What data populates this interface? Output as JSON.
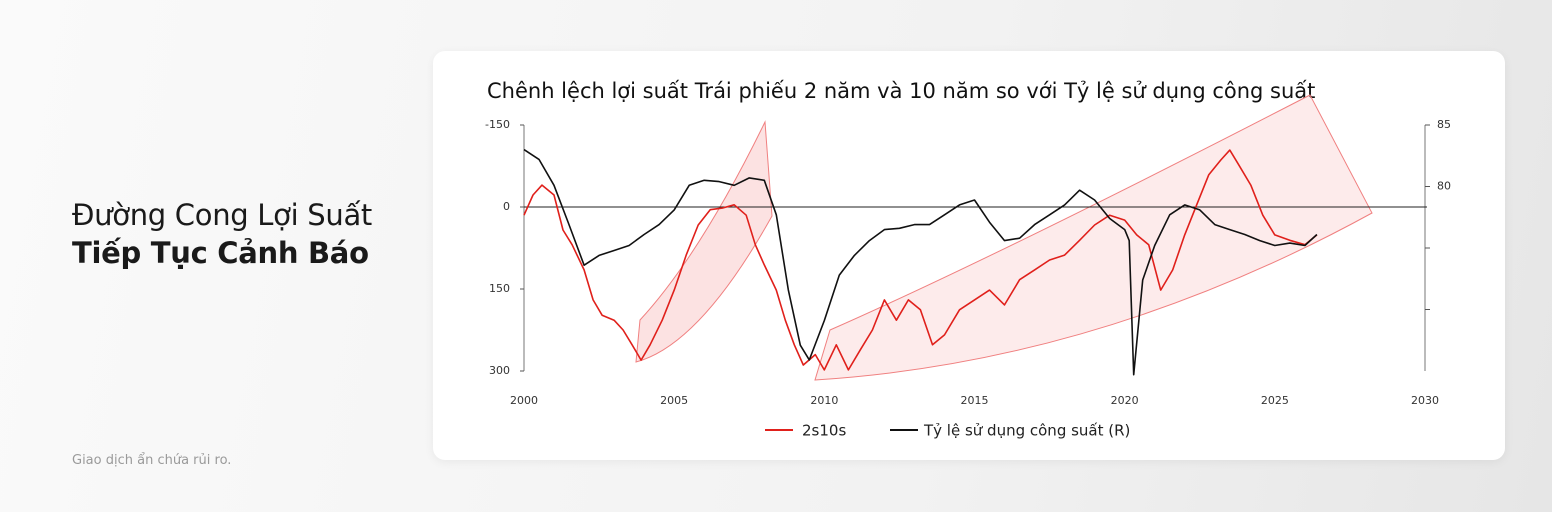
{
  "header": {
    "title_line1": "Đường Cong Lợi Suất",
    "title_line2": "Tiếp Tục Cảnh Báo"
  },
  "footer": "Giao dịch ẩn chứa rủi ro.",
  "chart_data": {
    "type": "line",
    "title": "Chênh lệch lợi suất Trái phiếu 2 năm và 10 năm so với Tỷ lệ sử dụng công suất",
    "xlim": [
      2000,
      2030
    ],
    "xticks": [
      2000,
      2005,
      2010,
      2015,
      2020,
      2025,
      2030
    ],
    "ylim": [
      -150,
      300
    ],
    "yticks": [
      -150,
      0,
      150,
      300
    ],
    "y_inverted": true,
    "zero_line": true,
    "y2lim": [
      65,
      85
    ],
    "y2ticks": [
      85,
      80,
      {
        "value": 75,
        "label": null
      },
      {
        "value": 70,
        "label": null
      }
    ],
    "series": [
      {
        "name": "2s10s",
        "color": "#e0201b",
        "x": [
          2000,
          2000.3,
          2000.6,
          2001,
          2001.3,
          2001.6,
          2002,
          2002.3,
          2002.6,
          2003,
          2003.3,
          2003.6,
          2003.9,
          2004.2,
          2004.6,
          2005,
          2005.4,
          2005.8,
          2006.2,
          2006.6,
          2007,
          2007.4,
          2007.7,
          2008,
          2008.4,
          2008.7,
          2009,
          2009.3,
          2009.7,
          2010,
          2010.4,
          2010.8,
          2011.2,
          2011.6,
          2012,
          2012.4,
          2012.8,
          2013.2,
          2013.6,
          2014,
          2014.5,
          2015,
          2015.5,
          2016,
          2016.5,
          2017,
          2017.5,
          2018,
          2018.5,
          2019,
          2019.5,
          2020,
          2020.4,
          2020.8,
          2021.2,
          2021.6,
          2022,
          2022.4,
          2022.8,
          2023.2,
          2023.5,
          2023.8,
          2024.2,
          2024.6,
          2025,
          2025.5,
          2026,
          2026.4
        ],
        "values": [
          15,
          -22,
          -40,
          -22,
          42,
          69,
          115,
          170,
          198,
          207,
          225,
          252,
          280,
          252,
          207,
          152,
          88,
          33,
          5,
          2,
          -4,
          15,
          69,
          106,
          152,
          207,
          252,
          289,
          270,
          298,
          252,
          298,
          261,
          225,
          170,
          207,
          170,
          188,
          252,
          234,
          188,
          170,
          152,
          179,
          133,
          115,
          97,
          88,
          61,
          33,
          15,
          24,
          51,
          69,
          152,
          115,
          51,
          -4,
          -59,
          -86,
          -104,
          -77,
          -40,
          15,
          51,
          61,
          69,
          51
        ]
      },
      {
        "name": "Tỷ lệ sử dụng công suất (R)",
        "color": "#111111",
        "axis": "y2",
        "x": [
          2000,
          2000.5,
          2001,
          2001.5,
          2002,
          2002.5,
          2003,
          2003.5,
          2004,
          2004.5,
          2005,
          2005.5,
          2006,
          2006.5,
          2007,
          2007.5,
          2008,
          2008.4,
          2008.8,
          2009.2,
          2009.5,
          2010,
          2010.5,
          2011,
          2011.5,
          2012,
          2012.5,
          2013,
          2013.5,
          2014,
          2014.5,
          2015,
          2015.5,
          2016,
          2016.5,
          2017,
          2017.5,
          2018,
          2018.5,
          2019,
          2019.5,
          2020,
          2020.15,
          2020.3,
          2020.6,
          2021,
          2021.5,
          2022,
          2022.5,
          2023,
          2023.5,
          2024,
          2024.5,
          2025,
          2025.5,
          2026,
          2026.4
        ],
        "values": [
          83.0,
          82.2,
          80.1,
          76.9,
          73.6,
          74.4,
          74.8,
          75.2,
          76.1,
          76.9,
          78.1,
          80.1,
          80.5,
          80.4,
          80.1,
          80.7,
          80.5,
          77.7,
          71.6,
          67.1,
          65.9,
          69.1,
          72.8,
          74.4,
          75.6,
          76.5,
          76.6,
          76.9,
          76.9,
          77.7,
          78.5,
          78.9,
          77.1,
          75.6,
          75.8,
          76.9,
          77.7,
          78.5,
          79.7,
          78.9,
          77.4,
          76.5,
          75.6,
          64.7,
          72.4,
          75.2,
          77.7,
          78.5,
          78.1,
          76.9,
          76.5,
          76.1,
          75.6,
          75.2,
          75.4,
          75.2,
          76.1
        ]
      }
    ]
  }
}
